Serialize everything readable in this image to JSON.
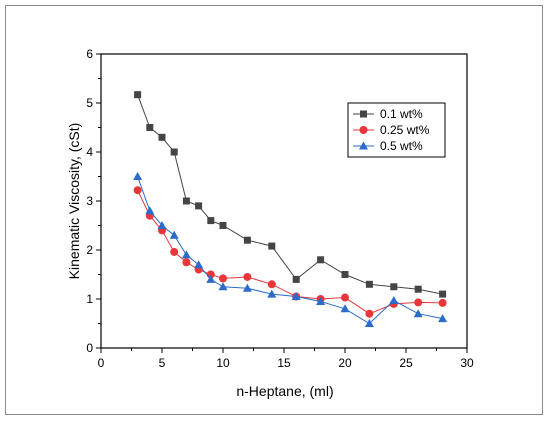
{
  "chart_data": {
    "type": "line",
    "title": "",
    "xlabel": "n-Heptane, (ml)",
    "ylabel": "Kinematic Viscosity, (cSt)",
    "xlim": [
      0,
      30
    ],
    "ylim": [
      0,
      6
    ],
    "x_ticks": [
      "0",
      "5",
      "10",
      "15",
      "20",
      "25",
      "30"
    ],
    "y_ticks": [
      "0",
      "1",
      "2",
      "3",
      "4",
      "5",
      "6"
    ],
    "grid": false,
    "legend_position": "top-right",
    "series": [
      {
        "name": "0.1 wt%",
        "color": "#454545",
        "marker": "square",
        "x": [
          3,
          4,
          5,
          6,
          7,
          8,
          9,
          10,
          12,
          14,
          16,
          18,
          20,
          22,
          24,
          26,
          28
        ],
        "y": [
          5.17,
          4.5,
          4.3,
          4.0,
          3.0,
          2.9,
          2.6,
          2.5,
          2.2,
          2.08,
          1.4,
          1.8,
          1.5,
          1.3,
          1.25,
          1.2,
          1.1
        ]
      },
      {
        "name": "0.25 wt%",
        "color": "#e8363a",
        "marker": "circle",
        "x": [
          3,
          4,
          5,
          6,
          7,
          8,
          9,
          10,
          12,
          14,
          16,
          18,
          20,
          22,
          24,
          26,
          28
        ],
        "y": [
          3.22,
          2.7,
          2.4,
          1.96,
          1.75,
          1.6,
          1.5,
          1.42,
          1.45,
          1.3,
          1.05,
          1.0,
          1.03,
          0.7,
          0.9,
          0.93,
          0.92
        ]
      },
      {
        "name": "0.5 wt%",
        "color": "#2b6bc9",
        "marker": "triangle",
        "x": [
          3,
          4,
          5,
          6,
          7,
          8,
          9,
          10,
          12,
          14,
          16,
          18,
          20,
          22,
          24,
          26,
          28
        ],
        "y": [
          3.5,
          2.8,
          2.5,
          2.3,
          1.9,
          1.7,
          1.4,
          1.25,
          1.22,
          1.1,
          1.05,
          0.95,
          0.8,
          0.5,
          0.97,
          0.7,
          0.6
        ]
      }
    ]
  }
}
